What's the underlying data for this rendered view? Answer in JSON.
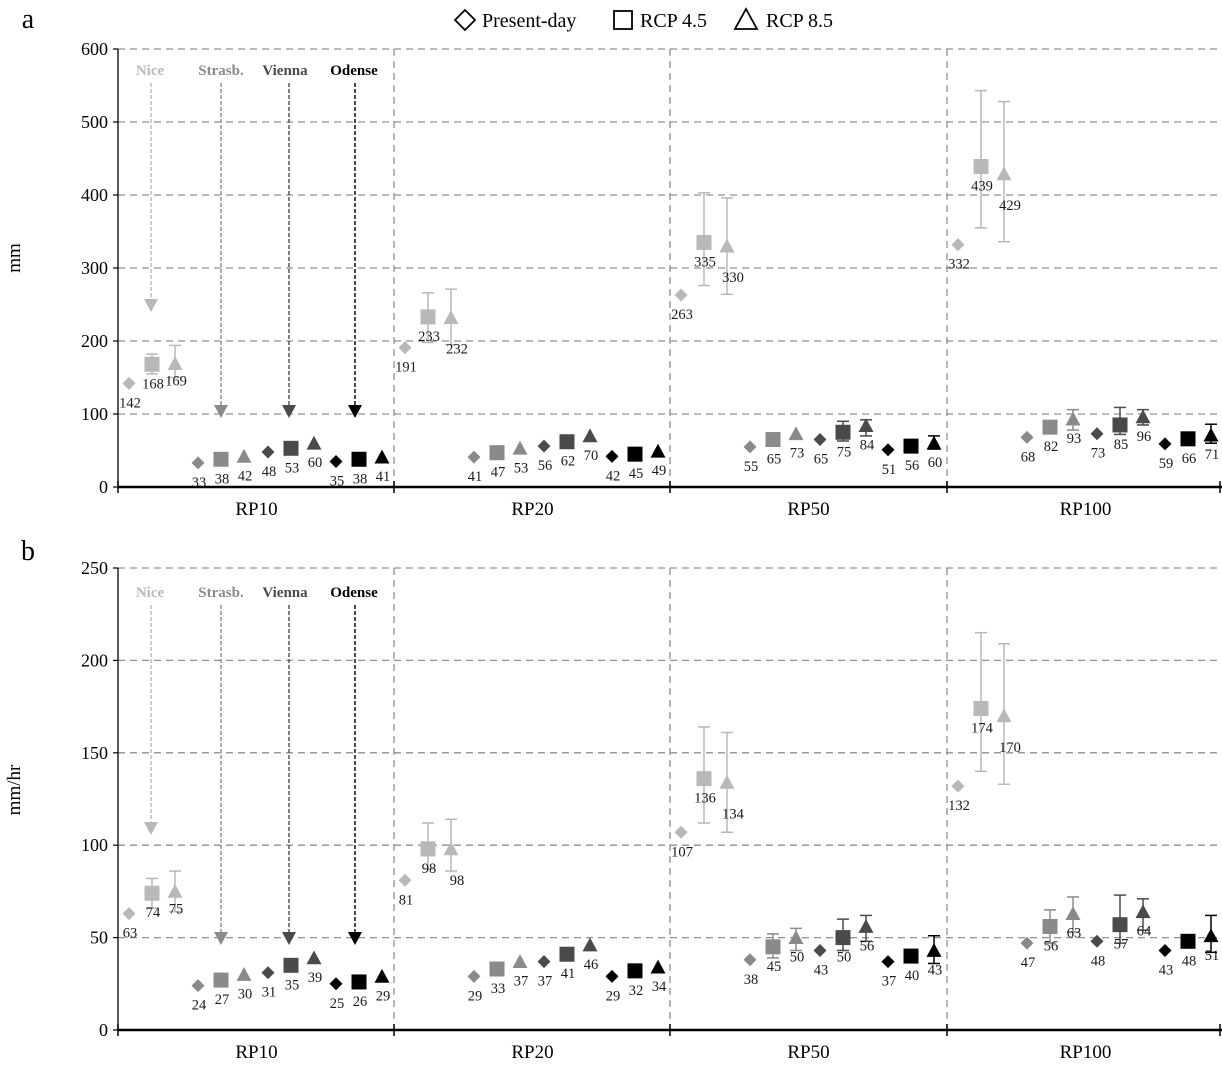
{
  "legend": [
    {
      "name": "Present-day",
      "marker": "diamond"
    },
    {
      "name": "RCP 4.5",
      "marker": "square"
    },
    {
      "name": "RCP 8.5",
      "marker": "triangle"
    }
  ],
  "cities": [
    {
      "name": "Nice",
      "color": "#b8b8b8"
    },
    {
      "name": "Strasb.",
      "color": "#8a8a8a"
    },
    {
      "name": "Vienna",
      "color": "#4a4a4a"
    },
    {
      "name": "Odense",
      "color": "#000000"
    }
  ],
  "chart_data": [
    {
      "type": "scatter",
      "panel_label": "a",
      "ylabel": "mm",
      "ylim": [
        0,
        600
      ],
      "yticks": [
        0,
        100,
        200,
        300,
        400,
        500,
        600
      ],
      "grid": "dashed",
      "categories": [
        "RP10",
        "RP20",
        "RP50",
        "RP100"
      ],
      "city_series": [
        "Nice",
        "Strasb.",
        "Vienna",
        "Odense"
      ],
      "scenario_series": [
        "Present-day",
        "RCP 4.5",
        "RCP 8.5"
      ],
      "values": [
        [
          [
            142,
            168,
            169
          ],
          [
            33,
            38,
            42
          ],
          [
            48,
            53,
            60
          ],
          [
            35,
            38,
            41
          ]
        ],
        [
          [
            191,
            233,
            232
          ],
          [
            41,
            47,
            53
          ],
          [
            56,
            62,
            70
          ],
          [
            42,
            45,
            49
          ]
        ],
        [
          [
            263,
            335,
            330
          ],
          [
            55,
            65,
            73
          ],
          [
            65,
            75,
            84
          ],
          [
            51,
            56,
            60
          ]
        ],
        [
          [
            332,
            439,
            429
          ],
          [
            68,
            82,
            93
          ],
          [
            73,
            85,
            96
          ],
          [
            59,
            66,
            71
          ]
        ]
      ],
      "error_bars": [
        [
          [
            null,
            [
              155,
              182
            ],
            [
              150,
              194
            ]
          ],
          [
            null,
            null,
            null
          ],
          [
            null,
            null,
            null
          ],
          [
            null,
            null,
            null
          ]
        ],
        [
          [
            null,
            [
              198,
              266
            ],
            [
              195,
              271
            ]
          ],
          [
            null,
            null,
            null
          ],
          [
            null,
            null,
            null
          ],
          [
            null,
            null,
            null
          ]
        ],
        [
          [
            null,
            [
              276,
              403
            ],
            [
              264,
              396
            ]
          ],
          [
            null,
            null,
            null
          ],
          [
            null,
            [
              63,
              90
            ],
            [
              70,
              92
            ]
          ],
          [
            null,
            null,
            [
              52,
              70
            ]
          ]
        ],
        [
          [
            null,
            [
              355,
              543
            ],
            [
              336,
              528
            ]
          ],
          [
            null,
            [
              74,
              90
            ],
            [
              78,
              106
            ]
          ],
          [
            null,
            [
              72,
              109
            ],
            [
              85,
              106
            ]
          ],
          [
            null,
            null,
            [
              60,
              86
            ]
          ]
        ]
      ]
    },
    {
      "type": "scatter",
      "panel_label": "b",
      "ylabel": "mm/hr",
      "ylim": [
        0,
        250
      ],
      "yticks": [
        0,
        50,
        100,
        150,
        200,
        250
      ],
      "grid": "dashed",
      "categories": [
        "RP10",
        "RP20",
        "RP50",
        "RP100"
      ],
      "city_series": [
        "Nice",
        "Strasb.",
        "Vienna",
        "Odense"
      ],
      "scenario_series": [
        "Present-day",
        "RCP 4.5",
        "RCP 8.5"
      ],
      "values": [
        [
          [
            63,
            74,
            75
          ],
          [
            24,
            27,
            30
          ],
          [
            31,
            35,
            39
          ],
          [
            25,
            26,
            29
          ]
        ],
        [
          [
            81,
            98,
            98
          ],
          [
            29,
            33,
            37
          ],
          [
            37,
            41,
            46
          ],
          [
            29,
            32,
            34
          ]
        ],
        [
          [
            107,
            136,
            134
          ],
          [
            38,
            45,
            50
          ],
          [
            43,
            50,
            56
          ],
          [
            37,
            40,
            43
          ]
        ],
        [
          [
            132,
            174,
            170
          ],
          [
            47,
            56,
            63
          ],
          [
            48,
            57,
            64
          ],
          [
            43,
            48,
            51
          ]
        ]
      ],
      "error_bars": [
        [
          [
            null,
            [
              66,
              82
            ],
            [
              64,
              86
            ]
          ],
          [
            null,
            null,
            null
          ],
          [
            null,
            null,
            null
          ],
          [
            null,
            null,
            null
          ]
        ],
        [
          [
            null,
            [
              87,
              112
            ],
            [
              86,
              114
            ]
          ],
          [
            null,
            null,
            null
          ],
          [
            null,
            null,
            null
          ],
          [
            null,
            null,
            null
          ]
        ],
        [
          [
            null,
            [
              112,
              164
            ],
            [
              107,
              161
            ]
          ],
          [
            null,
            [
              39,
              52
            ],
            [
              43,
              55
            ]
          ],
          [
            null,
            [
              43,
              60
            ],
            [
              48,
              62
            ]
          ],
          [
            null,
            null,
            [
              36,
              51
            ]
          ]
        ],
        [
          [
            null,
            [
              140,
              215
            ],
            [
              133,
              209
            ]
          ],
          [
            null,
            [
              47,
              65
            ],
            [
              53,
              72
            ]
          ],
          [
            null,
            [
              47,
              73
            ],
            [
              54,
              71
            ]
          ],
          [
            null,
            null,
            [
              42,
              62
            ]
          ]
        ]
      ]
    }
  ]
}
